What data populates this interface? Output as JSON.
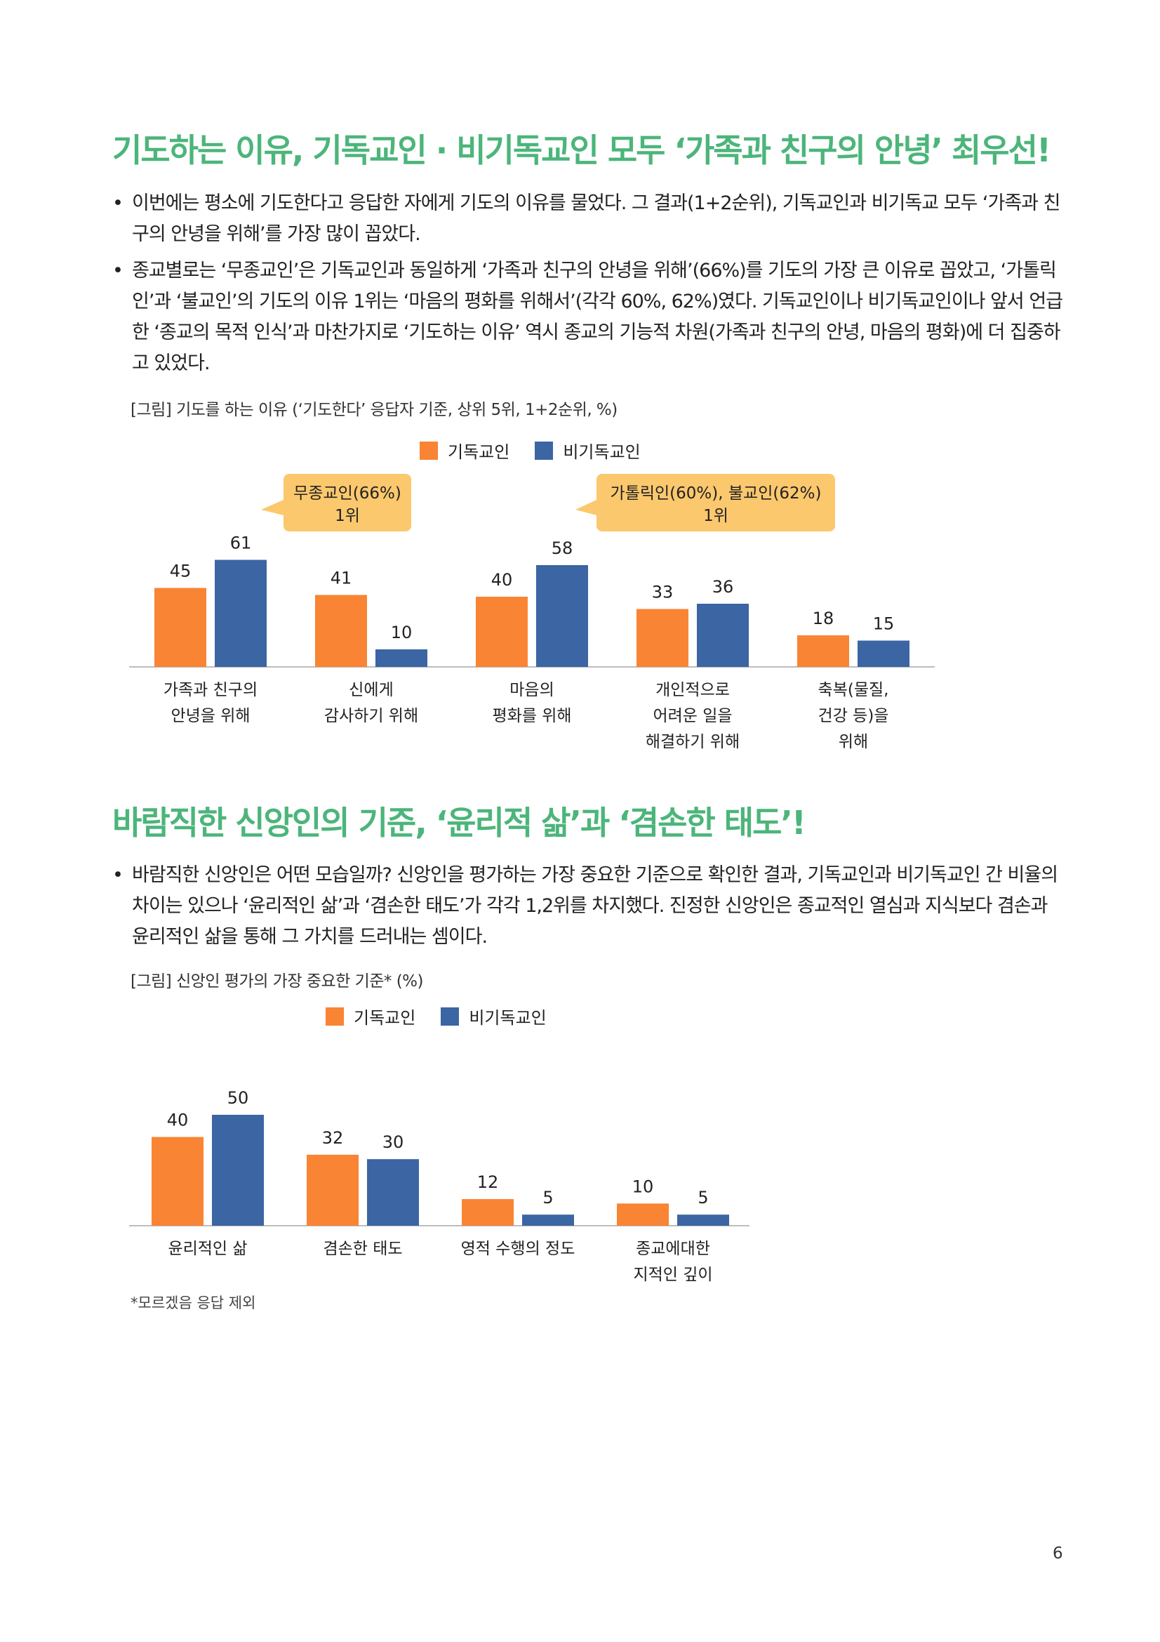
{
  "colors": {
    "title": "#4cb57a",
    "christian": "#f98433",
    "non_christian": "#3b65a3",
    "callout": "#fbc86d"
  },
  "section1": {
    "title": "기도하는 이유, 기독교인 · 비기독교인 모두 ‘가족과 친구의 안녕’ 최우선!",
    "bullets": [
      "이번에는 평소에 기도한다고 응답한 자에게 기도의 이유를 물었다. 그 결과(1+2순위), 기독교인과 비기독교 모두 ‘가족과 친구의 안녕을 위해’를 가장 많이 꼽았다.",
      "종교별로는 ‘무종교인’은 기독교인과 동일하게 ‘가족과 친구의 안녕을 위해’(66%)를 기도의 가장 큰 이유로 꼽았고, ‘가톨릭인’과 ‘불교인’의 기도의 이유 1위는 ‘마음의 평화를 위해서’(각각 60%, 62%)였다. 기독교인이나 비기독교인이나 앞서 언급한 ‘종교의 목적 인식’과 마찬가지로 ‘기도하는 이유’ 역시 종교의 기능적 차원(가족과 친구의 안녕, 마음의 평화)에 더 집중하고 있었다."
    ],
    "figure_caption": "[그림] 기도를 하는 이유 (‘기도한다’ 응답자 기준, 상위 5위, 1+2순위, %)",
    "callouts": [
      {
        "line1": "무종교인(66%)",
        "line2": "1위"
      },
      {
        "line1": "가톨릭인(60%), 불교인(62%)",
        "line2": "1위"
      }
    ]
  },
  "section2": {
    "title": "바람직한 신앙인의 기준, ‘윤리적 삶’과 ‘겸손한 태도’!",
    "bullets": [
      "바람직한 신앙인은 어떤 모습일까? 신앙인을 평가하는 가장 중요한 기준으로 확인한 결과, 기독교인과 비기독교인 간 비율의 차이는 있으나 ‘윤리적인 삶’과 ‘겸손한 태도’가 각각 1,2위를 차지했다. 진정한 신앙인은 종교적인 열심과 지식보다 겸손과 윤리적인 삶을 통해 그 가치를 드러내는 셈이다."
    ],
    "figure_caption": "[그림] 신앙인 평가의 가장 중요한 기준* (%)",
    "footnote": "*모르겠음 응답 제외"
  },
  "bullet_symbol": "•",
  "page_number": "6",
  "chart_data": [
    {
      "type": "bar",
      "title": "[그림] 기도를 하는 이유 (‘기도한다’ 응답자 기준, 상위 5위, 1+2순위, %)",
      "categories": [
        [
          "가족과 친구의",
          "안녕을 위해"
        ],
        [
          "신에게",
          "감사하기 위해"
        ],
        [
          "마음의",
          "평화를 위해"
        ],
        [
          "개인적으로",
          "어려운 일을",
          "해결하기 위해"
        ],
        [
          "축복(물질,",
          "건강 등)을",
          "위해"
        ]
      ],
      "series": [
        {
          "name": "기독교인",
          "values": [
            45,
            41,
            40,
            33,
            18
          ]
        },
        {
          "name": "비기독교인",
          "values": [
            61,
            10,
            58,
            36,
            15
          ]
        }
      ],
      "ylim": [
        0,
        70
      ],
      "legend": "top-center",
      "grid": false
    },
    {
      "type": "bar",
      "title": "[그림] 신앙인 평가의 가장 중요한 기준* (%)",
      "categories": [
        [
          "윤리적인 삶"
        ],
        [
          "겸손한 태도"
        ],
        [
          "영적 수행의 정도"
        ],
        [
          "종교에대한",
          "지적인 깊이"
        ]
      ],
      "series": [
        {
          "name": "기독교인",
          "values": [
            40,
            32,
            12,
            10
          ]
        },
        {
          "name": "비기독교인",
          "values": [
            50,
            30,
            5,
            5
          ]
        }
      ],
      "ylim": [
        0,
        60
      ],
      "legend": "top-center",
      "grid": false
    }
  ]
}
